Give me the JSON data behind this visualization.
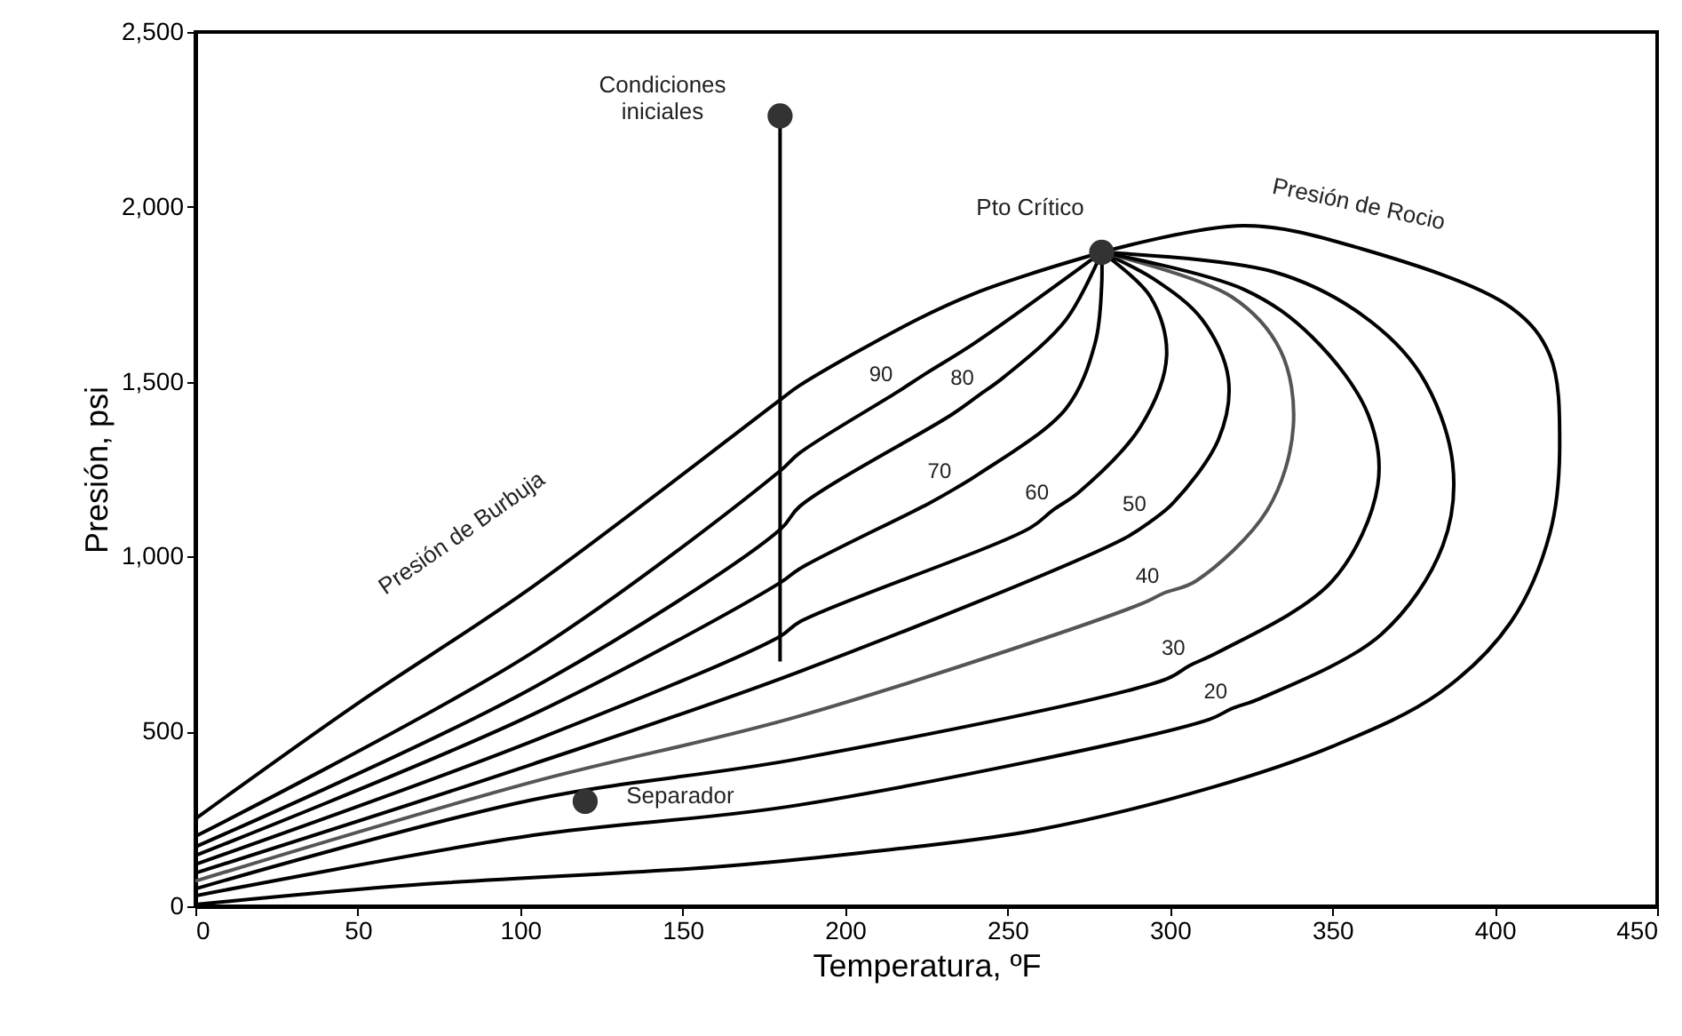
{
  "chart_data": {
    "type": "line",
    "xlabel": "Temperatura, ºF",
    "ylabel": "Presión, psi",
    "xlim": [
      0,
      450
    ],
    "xticks": [
      0,
      50,
      100,
      150,
      200,
      250,
      300,
      350,
      400,
      450
    ],
    "ylim": [
      0,
      2500
    ],
    "yticks": [
      0,
      500,
      {
        "value": 1000,
        "label": "1,000"
      },
      {
        "value": 1500,
        "label": "1,500"
      },
      {
        "value": 2000,
        "label": "2,000"
      },
      {
        "value": 2500,
        "label": "2,500"
      }
    ],
    "grid": false,
    "line_style": "solid",
    "marker": "none",
    "series": [
      {
        "color": "#000000",
        "x": [
          0,
          49,
          104,
          180,
          186,
          222,
          240,
          259,
          279
        ],
        "values": [
          250,
          574,
          915,
          1448,
          1489,
          1677,
          1753,
          1814,
          1870
        ]
      },
      {
        "color": "#000000",
        "x": [
          279,
          323,
          359,
          405,
          417,
          420,
          417,
          405,
          383,
          350,
          313,
          259,
          204,
          159,
          67,
          0
        ],
        "values": [
          1870,
          1946,
          1880,
          1712,
          1575,
          1321,
          1067,
          813,
          610,
          457,
          340,
          218,
          152,
          112,
          61,
          5
        ]
      },
      {
        "color": "#000000",
        "x": [
          0,
          104,
          180,
          186,
          216,
          225,
          240,
          279
        ],
        "values": [
          200,
          727,
          1245,
          1296,
          1470,
          1524,
          1611,
          1870
        ]
      },
      {
        "color": "#000000",
        "x": [
          0,
          104,
          180,
          186,
          233,
          241,
          249,
          268,
          279
        ],
        "values": [
          170,
          625,
          1077,
          1143,
          1407,
          1460,
          1514,
          1677,
          1870
        ]
      },
      {
        "color": "#000000",
        "x": [
          0,
          104,
          180,
          186,
          226,
          234,
          241,
          268,
          277,
          279,
          279
        ],
        "values": [
          145,
          549,
          925,
          965,
          1153,
          1195,
          1235,
          1423,
          1611,
          1775,
          1870
        ]
      },
      {
        "color": "#000000",
        "x": [
          0,
          104,
          180,
          186,
          257,
          264,
          272,
          291,
          299,
          294,
          279
        ],
        "values": [
          120,
          473,
          772,
          813,
          1082,
          1133,
          1184,
          1372,
          1575,
          1743,
          1870
        ]
      },
      {
        "color": "#000000",
        "x": [
          0,
          104,
          186,
          286,
          294,
          301,
          315,
          318,
          310,
          295,
          279
        ],
        "values": [
          95,
          407,
          671,
          1052,
          1100,
          1153,
          1336,
          1509,
          1677,
          1794,
          1870
        ]
      },
      {
        "color": "#555555",
        "x": [
          0,
          104,
          186,
          291,
          298,
          308,
          330,
          338,
          334,
          319,
          279
        ],
        "values": [
          72,
          356,
          544,
          864,
          895,
          930,
          1133,
          1372,
          1590,
          1743,
          1870
        ]
      },
      {
        "color": "#000000",
        "x": [
          0,
          104,
          186,
          299,
          306,
          315,
          350,
          364,
          361,
          344,
          323,
          279
        ],
        "values": [
          50,
          305,
          422,
          650,
          688,
          727,
          930,
          1204,
          1407,
          1626,
          1763,
          1870
        ]
      },
      {
        "color": "#000000",
        "x": [
          0,
          104,
          186,
          312,
          319,
          328,
          365,
          384,
          387,
          377,
          359,
          332,
          279
        ],
        "values": [
          30,
          203,
          290,
          534,
          565,
          595,
          777,
          1031,
          1270,
          1524,
          1692,
          1814,
          1870
        ]
      },
      {
        "color": "#000000",
        "x": [
          180,
          180
        ],
        "values": [
          2260,
          700
        ]
      },
      {
        "type": "scatter",
        "color": "#333333",
        "marker": "circle",
        "x": [
          180,
          279,
          120
        ],
        "values": [
          2260,
          1870,
          300
        ]
      }
    ],
    "annotations": [
      "Condiciones\niniciales",
      "Pto Crítico",
      "Separador",
      "Presión de Burbuja",
      "Presión de Rocio",
      {
        "text": "90",
        "x": 216,
        "y": 1470
      },
      {
        "text": "80",
        "x": 241,
        "y": 1460
      },
      {
        "text": "70",
        "x": 234,
        "y": 1195
      },
      {
        "text": "60",
        "x": 264,
        "y": 1133
      },
      {
        "text": "50",
        "x": 294,
        "y": 1100
      },
      {
        "text": "40",
        "x": 298,
        "y": 895
      },
      {
        "text": "30",
        "x": 306,
        "y": 688
      },
      {
        "text": "20",
        "x": 319,
        "y": 565
      }
    ]
  }
}
